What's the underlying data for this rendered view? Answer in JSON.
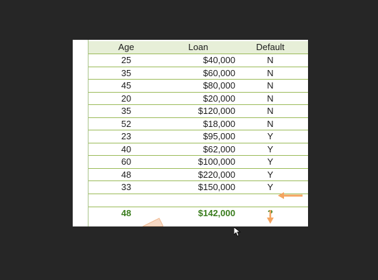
{
  "table": {
    "headers": {
      "age": "Age",
      "loan": "Loan",
      "default": "Default"
    },
    "rows": [
      {
        "age": "25",
        "loan": "$40,000",
        "default": "N"
      },
      {
        "age": "35",
        "loan": "$60,000",
        "default": "N"
      },
      {
        "age": "45",
        "loan": "$80,000",
        "default": "N"
      },
      {
        "age": "20",
        "loan": "$20,000",
        "default": "N"
      },
      {
        "age": "35",
        "loan": "$120,000",
        "default": "N"
      },
      {
        "age": "52",
        "loan": "$18,000",
        "default": "N"
      },
      {
        "age": "23",
        "loan": "$95,000",
        "default": "Y"
      },
      {
        "age": "40",
        "loan": "$62,000",
        "default": "Y"
      },
      {
        "age": "60",
        "loan": "$100,000",
        "default": "Y"
      },
      {
        "age": "48",
        "loan": "$220,000",
        "default": "Y"
      },
      {
        "age": "33",
        "loan": "$150,000",
        "default": "Y"
      }
    ],
    "prediction": {
      "age": "48",
      "loan": "$142,000",
      "default": "?"
    }
  },
  "colors": {
    "background": "#262626",
    "header_fill": "#e7efd8",
    "grid_line": "#9bbb59",
    "prediction_text": "#3a7d1e",
    "arrow": "#f4a460"
  },
  "icons": [
    "left-arrow-icon",
    "down-arrow-icon",
    "mouse-pointer-icon"
  ]
}
